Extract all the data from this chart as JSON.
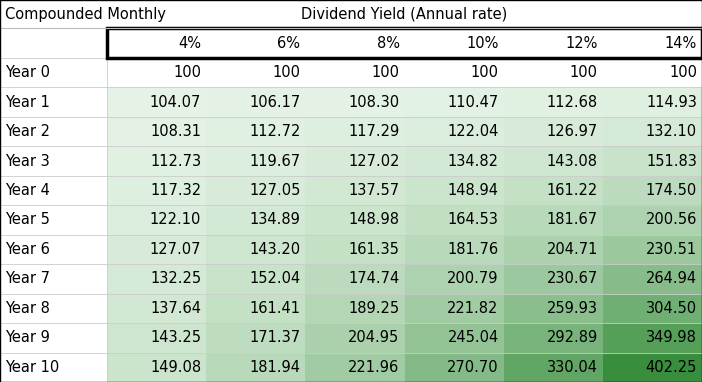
{
  "title_left": "Compounded Monthly",
  "title_right": "Dividend Yield (Annual rate)",
  "col_headers": [
    "4%",
    "6%",
    "8%",
    "10%",
    "12%",
    "14%"
  ],
  "row_headers": [
    "Year 0",
    "Year 1",
    "Year 2",
    "Year 3",
    "Year 4",
    "Year 5",
    "Year 6",
    "Year 7",
    "Year 8",
    "Year 9",
    "Year 10"
  ],
  "data": [
    [
      100,
      100,
      100,
      100,
      100,
      100
    ],
    [
      104.07,
      106.17,
      108.3,
      110.47,
      112.68,
      114.93
    ],
    [
      108.31,
      112.72,
      117.29,
      122.04,
      126.97,
      132.1
    ],
    [
      112.73,
      119.67,
      127.02,
      134.82,
      143.08,
      151.83
    ],
    [
      117.32,
      127.05,
      137.57,
      148.94,
      161.22,
      174.5
    ],
    [
      122.1,
      134.89,
      148.98,
      164.53,
      181.67,
      200.56
    ],
    [
      127.07,
      143.2,
      161.35,
      181.76,
      204.71,
      230.51
    ],
    [
      132.25,
      152.04,
      174.74,
      200.79,
      230.67,
      264.94
    ],
    [
      137.64,
      161.41,
      189.25,
      221.82,
      259.93,
      304.5
    ],
    [
      143.25,
      171.37,
      204.95,
      245.04,
      292.89,
      349.98
    ],
    [
      149.08,
      181.94,
      221.96,
      270.7,
      330.04,
      402.25
    ]
  ],
  "background_color": "#ffffff",
  "text_color": "#000000",
  "min_val": 100,
  "max_val": 402.25,
  "green_light": [
    232,
    245,
    233
  ],
  "green_dark": [
    56,
    142,
    60
  ],
  "fig_w": 7.02,
  "fig_h": 3.82,
  "dpi": 100
}
